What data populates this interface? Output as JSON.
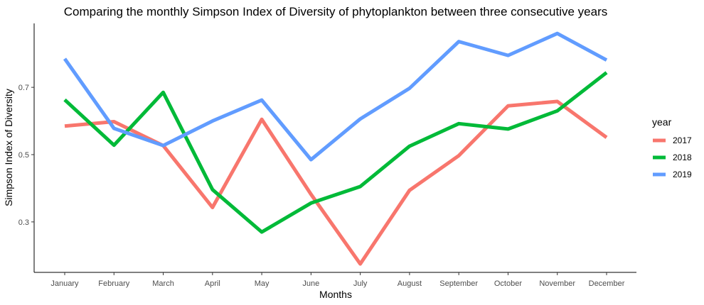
{
  "chart_data": {
    "type": "line",
    "title": "Comparing the monthly Simpson Index of Diversity of phytoplankton between three consecutive years",
    "xlabel": "Months",
    "ylabel": "Simpson Index of Diversity",
    "categories": [
      "January",
      "February",
      "March",
      "April",
      "May",
      "June",
      "July",
      "August",
      "September",
      "October",
      "November",
      "December"
    ],
    "yticks": [
      0.3,
      0.5,
      0.7
    ],
    "ylim": [
      0.15,
      0.89
    ],
    "grid": false,
    "legend": {
      "title": "year",
      "position": "right"
    },
    "series": [
      {
        "name": "2017",
        "color": "#F8766D",
        "values": [
          0.585,
          0.598,
          0.527,
          0.343,
          0.605,
          0.382,
          0.175,
          0.394,
          0.497,
          0.645,
          0.658,
          0.551
        ]
      },
      {
        "name": "2018",
        "color": "#00BA38",
        "values": [
          0.663,
          0.528,
          0.685,
          0.396,
          0.27,
          0.356,
          0.405,
          0.525,
          0.592,
          0.576,
          0.63,
          0.744
        ]
      },
      {
        "name": "2019",
        "color": "#619CFF",
        "values": [
          0.785,
          0.578,
          0.527,
          0.6,
          0.662,
          0.485,
          0.606,
          0.697,
          0.836,
          0.795,
          0.86,
          0.781
        ]
      }
    ]
  }
}
